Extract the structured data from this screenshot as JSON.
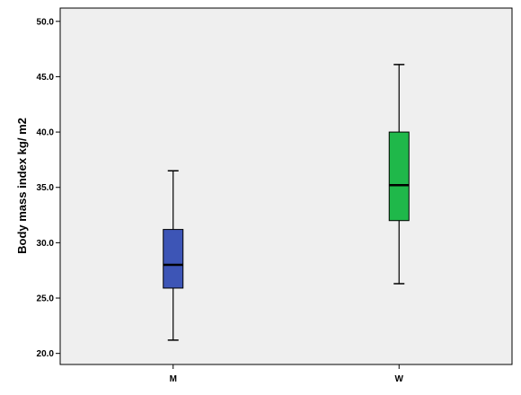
{
  "chart_data": {
    "type": "boxplot",
    "title": "",
    "xlabel": "",
    "ylabel": "Body mass index kg/ m2",
    "ylim": [
      19.0,
      51.2
    ],
    "yticks": [
      20.0,
      25.0,
      30.0,
      35.0,
      40.0,
      45.0,
      50.0
    ],
    "ytick_labels": [
      "20.0",
      "25.0",
      "30.0",
      "35.0",
      "40.0",
      "45.0",
      "50.0"
    ],
    "categories": [
      "M",
      "W"
    ],
    "boxes": [
      {
        "category": "M",
        "min": 21.2,
        "q1": 25.9,
        "median": 28.0,
        "q3": 31.2,
        "max": 36.5,
        "color": "#3d55b6"
      },
      {
        "category": "W",
        "min": 26.3,
        "q1": 32.0,
        "median": 35.2,
        "q3": 40.0,
        "max": 46.1,
        "color": "#1fb84a"
      }
    ],
    "grid": false,
    "background": "#efefef",
    "whisker_color": "#000000",
    "median_color": "#000000"
  }
}
